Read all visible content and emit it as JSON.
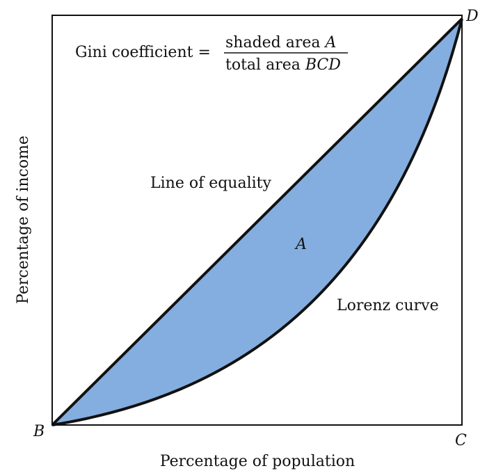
{
  "formula": {
    "lhs": "Gini coefficient =",
    "numerator": "shaded area ",
    "numerator_var": "A",
    "denominator": "total area ",
    "denominator_var": "BCD"
  },
  "labels": {
    "equality": "Line of equality",
    "lorenz": "Lorenz curve",
    "area": "A",
    "x_axis": "Percentage of population",
    "y_axis": "Percentage of income"
  },
  "points": {
    "B": "B",
    "C": "C",
    "D": "D"
  },
  "colors": {
    "shaded": "#84aee0",
    "stroke": "#111111"
  }
}
